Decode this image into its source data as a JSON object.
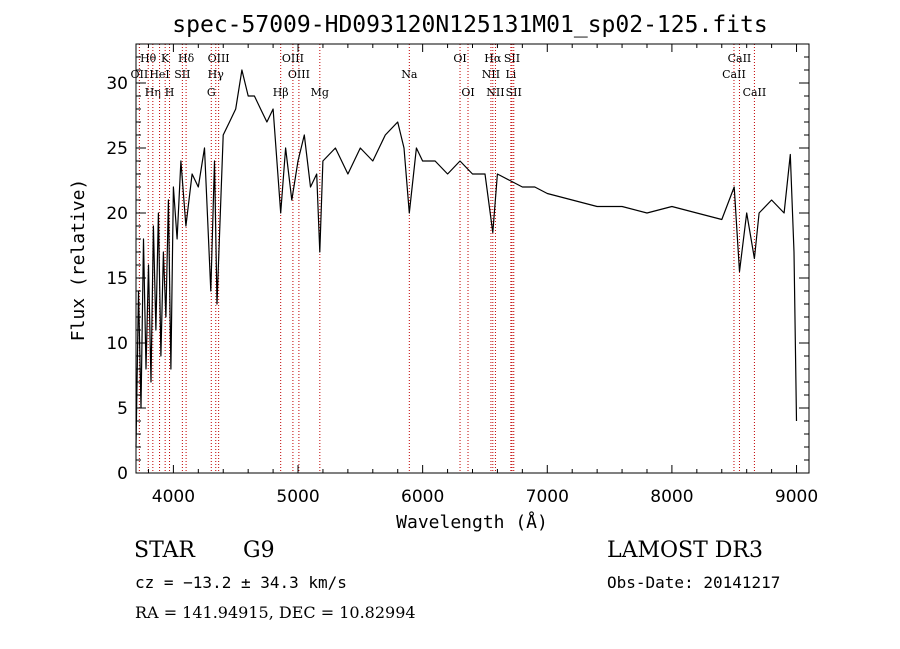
{
  "chart_data": {
    "type": "line",
    "title": "spec-57009-HD093120N125131M01_sp02-125.fits",
    "xlabel": "Wavelength (Å)",
    "ylabel": "Flux (relative)",
    "xlim": [
      3700,
      9100
    ],
    "ylim": [
      0,
      33
    ],
    "xticks": [
      4000,
      5000,
      6000,
      7000,
      8000,
      9000
    ],
    "yticks": [
      0,
      5,
      10,
      15,
      20,
      25,
      30
    ],
    "grid": false,
    "series": [
      {
        "x": [
          3700,
          3720,
          3740,
          3760,
          3780,
          3800,
          3820,
          3840,
          3860,
          3880,
          3900,
          3920,
          3940,
          3960,
          3980,
          4000,
          4030,
          4060,
          4100,
          4150,
          4200,
          4250,
          4300,
          4330,
          4350,
          4400,
          4450,
          4500,
          4550,
          4600,
          4650,
          4700,
          4750,
          4800,
          4861,
          4900,
          4950,
          5000,
          5050,
          5100,
          5150,
          5175,
          5200,
          5300,
          5400,
          5500,
          5600,
          5700,
          5800,
          5850,
          5893,
          5950,
          6000,
          6100,
          6200,
          6300,
          6400,
          6500,
          6563,
          6600,
          6700,
          6800,
          6900,
          7000,
          7200,
          7400,
          7600,
          7800,
          8000,
          8200,
          8400,
          8500,
          8542,
          8600,
          8662,
          8700,
          8800,
          8900,
          8950,
          8980,
          9000
        ],
        "y": [
          2,
          14,
          5,
          18,
          8,
          16,
          7,
          19,
          11,
          20,
          9,
          17,
          12,
          21,
          8,
          22,
          18,
          24,
          19,
          23,
          22,
          25,
          14,
          24,
          13,
          26,
          27,
          28,
          31,
          29,
          29,
          28,
          27,
          28,
          20,
          25,
          21,
          24,
          26,
          22,
          23,
          17,
          24,
          25,
          23,
          25,
          24,
          26,
          27,
          25,
          20,
          25,
          24,
          24,
          23,
          24,
          23,
          23,
          18.5,
          23,
          22.5,
          22,
          22,
          21.5,
          21,
          20.5,
          20.5,
          20,
          20.5,
          20,
          19.5,
          22,
          15.5,
          20,
          16.5,
          20,
          21,
          20,
          24.5,
          17,
          4
        ]
      }
    ],
    "lines": [
      {
        "name": "Hθ",
        "x": 3798,
        "row": 0
      },
      {
        "name": "OII",
        "x": 3727,
        "row": 1
      },
      {
        "name": "Hη",
        "x": 3835,
        "row": 2
      },
      {
        "name": "HeI",
        "x": 3889,
        "row": 1
      },
      {
        "name": "K",
        "x": 3934,
        "row": 0
      },
      {
        "name": "H",
        "x": 3969,
        "row": 2
      },
      {
        "name": "SII",
        "x": 4072,
        "row": 1
      },
      {
        "name": "Hδ",
        "x": 4102,
        "row": 0
      },
      {
        "name": "OIII",
        "x": 4363,
        "row": 0
      },
      {
        "name": "Hγ",
        "x": 4340,
        "row": 1
      },
      {
        "name": "G",
        "x": 4304,
        "row": 2
      },
      {
        "name": "Hβ",
        "x": 4861,
        "row": 2
      },
      {
        "name": "OIII",
        "x": 4959,
        "row": 0
      },
      {
        "name": "OIII",
        "x": 5007,
        "row": 1
      },
      {
        "name": "Mg",
        "x": 5175,
        "row": 2
      },
      {
        "name": "Na",
        "x": 5893,
        "row": 1
      },
      {
        "name": "OI",
        "x": 6300,
        "row": 0
      },
      {
        "name": "OI",
        "x": 6364,
        "row": 2
      },
      {
        "name": "Hα",
        "x": 6563,
        "row": 0
      },
      {
        "name": "NII",
        "x": 6548,
        "row": 1
      },
      {
        "name": "NII",
        "x": 6584,
        "row": 2
      },
      {
        "name": "SII",
        "x": 6717,
        "row": 0
      },
      {
        "name": "Li",
        "x": 6708,
        "row": 1
      },
      {
        "name": "SII",
        "x": 6731,
        "row": 2
      },
      {
        "name": "CaII",
        "x": 8542,
        "row": 0
      },
      {
        "name": "CaII",
        "x": 8498,
        "row": 1
      },
      {
        "name": "CaII",
        "x": 8662,
        "row": 2
      }
    ]
  },
  "info": {
    "class": "STAR",
    "subclass": "G9",
    "survey": "LAMOST DR3",
    "cz": "cz = −13.2 ± 34.3 km/s",
    "obs_date": "Obs-Date: 20141217",
    "radec": "RA = 141.94915, DEC =  10.82994"
  }
}
